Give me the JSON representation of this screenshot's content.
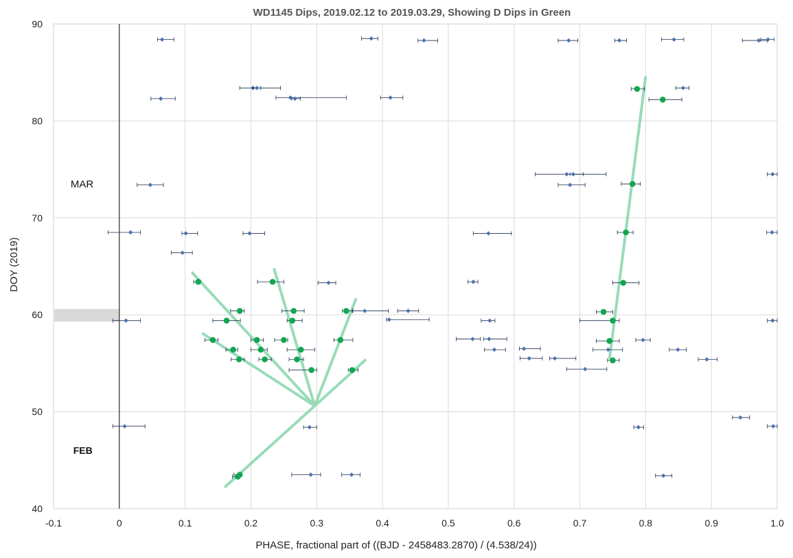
{
  "chart_data": {
    "type": "scatter",
    "title": "WD1145 Dips, 2019.02.12 to 2019.03.29, Showing D Dips in Green",
    "xlabel": "PHASE, fractional part of ((BJD - 2458483.2870) / (4.538/24))",
    "ylabel": "DOY (2019)",
    "xlim": [
      -0.1,
      1.0
    ],
    "ylim": [
      40,
      90
    ],
    "xticks": [
      "-0.1",
      "0",
      "0.1",
      "0.2",
      "0.3",
      "0.4",
      "0.5",
      "0.6",
      "0.7",
      "0.8",
      "0.9",
      "1.0"
    ],
    "yticks": [
      "40",
      "50",
      "60",
      "70",
      "80",
      "90"
    ],
    "grid": true,
    "colors": {
      "blue": "#4a72b0",
      "green": "#11a650",
      "trend": "#99dbb8",
      "band": "#d9d9d9",
      "errbar": "#1b2f4a"
    },
    "annotations": [
      {
        "text": "MAR",
        "x": -0.074,
        "y": 73.5,
        "bold": false
      },
      {
        "text": "FEB",
        "x": -0.07,
        "y": 46.0,
        "bold": true
      }
    ],
    "band": {
      "x": [
        -0.1,
        0.0
      ],
      "y": [
        59.3,
        60.6
      ]
    },
    "series": [
      {
        "color": "#4a72b0",
        "points": [
          {
            "x": 0.065,
            "y": 88.4,
            "lo": 0.058,
            "hi": 0.083
          },
          {
            "x": 0.383,
            "y": 88.5,
            "lo": 0.368,
            "hi": 0.393
          },
          {
            "x": 0.463,
            "y": 88.3,
            "lo": 0.454,
            "hi": 0.484
          },
          {
            "x": 0.683,
            "y": 88.3,
            "lo": 0.667,
            "hi": 0.697
          },
          {
            "x": 0.76,
            "y": 88.3,
            "lo": 0.753,
            "hi": 0.771
          },
          {
            "x": 0.843,
            "y": 88.4,
            "lo": 0.824,
            "hi": 0.858
          },
          {
            "x": 0.972,
            "y": 88.3,
            "lo": 0.947,
            "hi": 0.985
          },
          {
            "x": 0.986,
            "y": 88.4,
            "lo": 0.975,
            "hi": 0.995
          },
          {
            "x": 0.203,
            "y": 83.4,
            "lo": 0.183,
            "hi": 0.245
          },
          {
            "x": 0.209,
            "y": 83.4,
            "lo": 0.203,
            "hi": 0.215
          },
          {
            "x": 0.063,
            "y": 82.3,
            "lo": 0.048,
            "hi": 0.085
          },
          {
            "x": 0.26,
            "y": 82.4,
            "lo": 0.238,
            "hi": 0.345
          },
          {
            "x": 0.267,
            "y": 82.3,
            "lo": 0.262,
            "hi": 0.275
          },
          {
            "x": 0.412,
            "y": 82.4,
            "lo": 0.397,
            "hi": 0.431
          },
          {
            "x": 0.857,
            "y": 83.4,
            "lo": 0.846,
            "hi": 0.866
          },
          {
            "x": 0.68,
            "y": 74.5,
            "lo": 0.632,
            "hi": 0.705
          },
          {
            "x": 0.69,
            "y": 74.5,
            "lo": 0.685,
            "hi": 0.74
          },
          {
            "x": 0.993,
            "y": 74.5,
            "lo": 0.985,
            "hi": 1.0
          },
          {
            "x": 0.047,
            "y": 73.4,
            "lo": 0.027,
            "hi": 0.067
          },
          {
            "x": 0.685,
            "y": 73.4,
            "lo": 0.667,
            "hi": 0.708
          },
          {
            "x": 0.017,
            "y": 68.5,
            "lo": -0.017,
            "hi": 0.032
          },
          {
            "x": 0.101,
            "y": 68.4,
            "lo": 0.095,
            "hi": 0.119
          },
          {
            "x": 0.198,
            "y": 68.4,
            "lo": 0.188,
            "hi": 0.221
          },
          {
            "x": 0.561,
            "y": 68.4,
            "lo": 0.538,
            "hi": 0.596
          },
          {
            "x": 0.992,
            "y": 68.5,
            "lo": 0.984,
            "hi": 1.0
          },
          {
            "x": 0.096,
            "y": 66.4,
            "lo": 0.079,
            "hi": 0.111
          },
          {
            "x": 0.318,
            "y": 63.3,
            "lo": 0.302,
            "hi": 0.329
          },
          {
            "x": 0.538,
            "y": 63.4,
            "lo": 0.53,
            "hi": 0.545
          },
          {
            "x": 0.373,
            "y": 60.4,
            "lo": 0.355,
            "hi": 0.409
          },
          {
            "x": 0.439,
            "y": 60.4,
            "lo": 0.423,
            "hi": 0.455
          },
          {
            "x": 0.01,
            "y": 59.4,
            "lo": -0.01,
            "hi": 0.032
          },
          {
            "x": 0.41,
            "y": 59.5,
            "lo": 0.406,
            "hi": 0.471
          },
          {
            "x": 0.563,
            "y": 59.4,
            "lo": 0.55,
            "hi": 0.571
          },
          {
            "x": 0.993,
            "y": 59.4,
            "lo": 0.985,
            "hi": 1.0
          },
          {
            "x": 0.537,
            "y": 57.5,
            "lo": 0.512,
            "hi": 0.549
          },
          {
            "x": 0.562,
            "y": 57.5,
            "lo": 0.554,
            "hi": 0.589
          },
          {
            "x": 0.796,
            "y": 57.4,
            "lo": 0.785,
            "hi": 0.807
          },
          {
            "x": 0.57,
            "y": 56.4,
            "lo": 0.555,
            "hi": 0.587
          },
          {
            "x": 0.615,
            "y": 56.5,
            "lo": 0.608,
            "hi": 0.64
          },
          {
            "x": 0.743,
            "y": 56.4,
            "lo": 0.72,
            "hi": 0.765
          },
          {
            "x": 0.849,
            "y": 56.4,
            "lo": 0.836,
            "hi": 0.862
          },
          {
            "x": 0.623,
            "y": 55.5,
            "lo": 0.609,
            "hi": 0.643
          },
          {
            "x": 0.662,
            "y": 55.5,
            "lo": 0.654,
            "hi": 0.694
          },
          {
            "x": 0.893,
            "y": 55.4,
            "lo": 0.88,
            "hi": 0.909
          },
          {
            "x": 0.708,
            "y": 54.4,
            "lo": 0.68,
            "hi": 0.741
          },
          {
            "x": 0.944,
            "y": 49.4,
            "lo": 0.932,
            "hi": 0.958
          },
          {
            "x": 0.008,
            "y": 48.5,
            "lo": -0.01,
            "hi": 0.039
          },
          {
            "x": 0.289,
            "y": 48.4,
            "lo": 0.28,
            "hi": 0.3
          },
          {
            "x": 0.789,
            "y": 48.4,
            "lo": 0.782,
            "hi": 0.797
          },
          {
            "x": 0.994,
            "y": 48.5,
            "lo": 0.985,
            "hi": 1.0
          },
          {
            "x": 0.291,
            "y": 43.5,
            "lo": 0.262,
            "hi": 0.306
          },
          {
            "x": 0.353,
            "y": 43.5,
            "lo": 0.338,
            "hi": 0.366
          },
          {
            "x": 0.827,
            "y": 43.4,
            "lo": 0.815,
            "hi": 0.84
          }
        ]
      },
      {
        "color": "#11a650",
        "points": [
          {
            "x": 0.787,
            "y": 83.3,
            "lo": 0.778,
            "hi": 0.798
          },
          {
            "x": 0.826,
            "y": 82.2,
            "lo": 0.805,
            "hi": 0.855
          },
          {
            "x": 0.78,
            "y": 73.5,
            "lo": 0.763,
            "hi": 0.792
          },
          {
            "x": 0.77,
            "y": 68.5,
            "lo": 0.757,
            "hi": 0.781
          },
          {
            "x": 0.12,
            "y": 63.4,
            "lo": 0.113,
            "hi": 0.123
          },
          {
            "x": 0.233,
            "y": 63.4,
            "lo": 0.21,
            "hi": 0.25
          },
          {
            "x": 0.766,
            "y": 63.3,
            "lo": 0.75,
            "hi": 0.79
          },
          {
            "x": 0.183,
            "y": 60.4,
            "lo": 0.169,
            "hi": 0.19
          },
          {
            "x": 0.265,
            "y": 60.4,
            "lo": 0.247,
            "hi": 0.281
          },
          {
            "x": 0.345,
            "y": 60.4,
            "lo": 0.339,
            "hi": 0.354
          },
          {
            "x": 0.736,
            "y": 60.3,
            "lo": 0.725,
            "hi": 0.75
          },
          {
            "x": 0.163,
            "y": 59.4,
            "lo": 0.142,
            "hi": 0.184
          },
          {
            "x": 0.263,
            "y": 59.4,
            "lo": 0.255,
            "hi": 0.278
          },
          {
            "x": 0.75,
            "y": 59.4,
            "lo": 0.7,
            "hi": 0.76
          },
          {
            "x": 0.142,
            "y": 57.4,
            "lo": 0.13,
            "hi": 0.15
          },
          {
            "x": 0.209,
            "y": 57.4,
            "lo": 0.2,
            "hi": 0.219
          },
          {
            "x": 0.25,
            "y": 57.4,
            "lo": 0.236,
            "hi": 0.256
          },
          {
            "x": 0.336,
            "y": 57.4,
            "lo": 0.326,
            "hi": 0.355
          },
          {
            "x": 0.745,
            "y": 57.3,
            "lo": 0.725,
            "hi": 0.76
          },
          {
            "x": 0.173,
            "y": 56.4,
            "lo": 0.162,
            "hi": 0.18
          },
          {
            "x": 0.215,
            "y": 56.4,
            "lo": 0.2,
            "hi": 0.225
          },
          {
            "x": 0.276,
            "y": 56.4,
            "lo": 0.255,
            "hi": 0.297
          },
          {
            "x": 0.182,
            "y": 55.4,
            "lo": 0.17,
            "hi": 0.19
          },
          {
            "x": 0.221,
            "y": 55.4,
            "lo": 0.212,
            "hi": 0.231
          },
          {
            "x": 0.27,
            "y": 55.4,
            "lo": 0.258,
            "hi": 0.28
          },
          {
            "x": 0.75,
            "y": 55.3,
            "lo": 0.742,
            "hi": 0.76
          },
          {
            "x": 0.292,
            "y": 54.3,
            "lo": 0.258,
            "hi": 0.3
          },
          {
            "x": 0.354,
            "y": 54.3,
            "lo": 0.348,
            "hi": 0.363
          },
          {
            "x": 0.183,
            "y": 43.5,
            "lo": 0.174,
            "hi": 0.186
          },
          {
            "x": 0.18,
            "y": 43.3,
            "lo": 0.172,
            "hi": 0.183
          }
        ]
      }
    ],
    "trend_lines": [
      {
        "x": [
          0.16,
          0.297
        ],
        "y": [
          42.2,
          50.6
        ]
      },
      {
        "x": 0.297,
        "_": null
      },
      {
        "x": [
          0.11,
          0.297
        ],
        "y": [
          64.4,
          50.6
        ]
      },
      {
        "x": [
          0.235,
          0.297
        ],
        "y": [
          64.8,
          50.6
        ]
      },
      {
        "x": [
          0.126,
          0.297
        ],
        "y": [
          58.1,
          50.6
        ]
      },
      {
        "x": [
          0.36,
          0.297
        ],
        "y": [
          61.7,
          50.6
        ]
      },
      {
        "x": [
          0.375,
          0.297
        ],
        "y": [
          55.4,
          50.6
        ]
      },
      {
        "x": [
          0.745,
          0.8
        ],
        "y": [
          55.4,
          84.6
        ]
      }
    ]
  }
}
